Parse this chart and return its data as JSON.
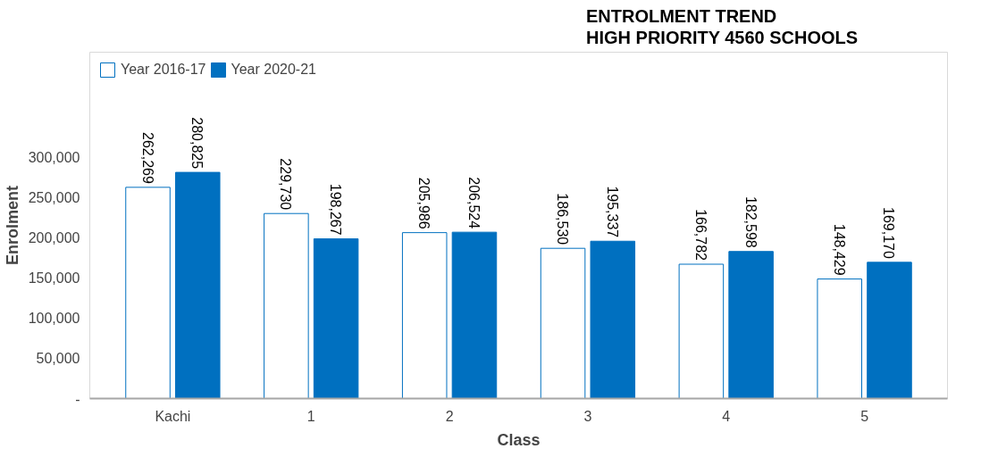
{
  "chart_data": {
    "type": "bar",
    "title": "ENTROLMENT TREND\nHIGH PRIORITY 4560 SCHOOLS",
    "xlabel": "Class",
    "ylabel": "Enrolment",
    "categories": [
      "Kachi",
      "1",
      "2",
      "3",
      "4",
      "5"
    ],
    "series": [
      {
        "name": "Year 2016-17",
        "color": "#ffffff",
        "values": [
          262269,
          229730,
          205986,
          186530,
          166782,
          148429
        ],
        "value_labels": [
          "262,269",
          "229,730",
          "205,986",
          "186,530",
          "166,782",
          "148,429"
        ]
      },
      {
        "name": "Year 2020-21",
        "color": "#0070c0",
        "values": [
          280825,
          198267,
          206524,
          195337,
          182598,
          169170
        ],
        "value_labels": [
          "280,825",
          "198,267",
          "206,524",
          "195,337",
          "182,598",
          "169,170"
        ]
      }
    ],
    "ylim": [
      0,
      430000
    ],
    "yticks": [
      {
        "value": 0,
        "label": "-"
      },
      {
        "value": 50000,
        "label": "50,000"
      },
      {
        "value": 100000,
        "label": "100,000"
      },
      {
        "value": 150000,
        "label": "150,000"
      },
      {
        "value": 200000,
        "label": "200,000"
      },
      {
        "value": 250000,
        "label": "250,000"
      },
      {
        "value": 300000,
        "label": "300,000"
      }
    ],
    "grid": false,
    "legend": "top left"
  }
}
